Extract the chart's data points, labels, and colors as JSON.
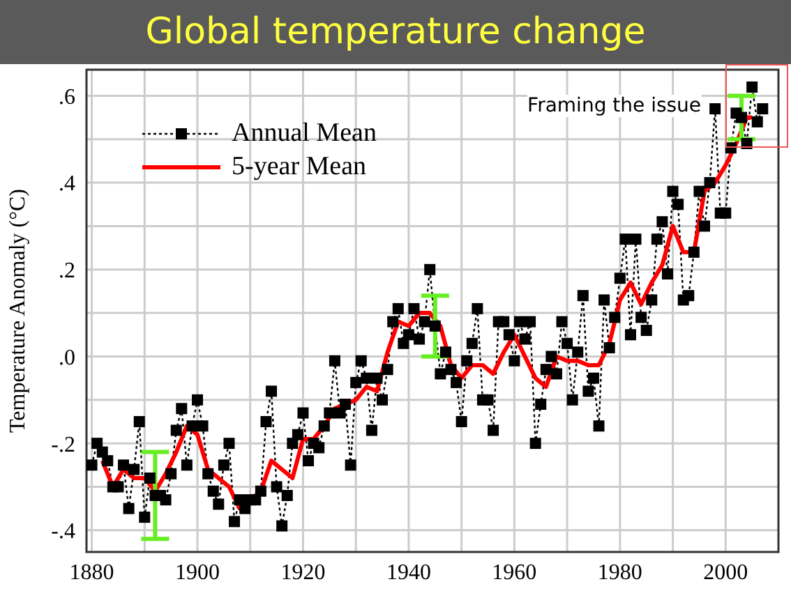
{
  "chart_data": {
    "type": "line",
    "title": "Global temperature change",
    "ylabel": "Temperature Anomaly (°C)",
    "annotations": [
      "Framing the issue"
    ],
    "xlim": [
      1879,
      2010
    ],
    "xticks": [
      1880,
      {
        "value": 1890,
        "label": null
      },
      1900,
      {
        "value": 1910,
        "label": null
      },
      1920,
      {
        "value": 1930,
        "label": null
      },
      1940,
      {
        "value": 1950,
        "label": null
      },
      1960,
      {
        "value": 1970,
        "label": null
      },
      1980,
      {
        "value": 1990,
        "label": null
      },
      2000
    ],
    "ylim": [
      -0.45,
      0.66
    ],
    "yticks": [
      {
        "value": -0.4,
        "label": "-.4"
      },
      {
        "value": -0.3,
        "label": null
      },
      {
        "value": -0.2,
        "label": "-.2"
      },
      {
        "value": -0.1,
        "label": null
      },
      {
        "value": 0,
        "label": ".0"
      },
      {
        "value": 0.1,
        "label": null
      },
      {
        "value": 0.2,
        "label": ".2"
      },
      {
        "value": 0.3,
        "label": null
      },
      {
        "value": 0.4,
        "label": ".4"
      },
      {
        "value": 0.5,
        "label": null
      },
      {
        "value": 0.6,
        "label": ".6"
      }
    ],
    "grid": true,
    "legend": "top left",
    "series": [
      {
        "name": "Annual Mean",
        "color": "#000000",
        "marker": "square",
        "line_style": "dotted",
        "x": [
          1880,
          1881,
          1882,
          1883,
          1884,
          1885,
          1886,
          1887,
          1888,
          1889,
          1890,
          1891,
          1892,
          1893,
          1894,
          1895,
          1896,
          1897,
          1898,
          1899,
          1900,
          1901,
          1902,
          1903,
          1904,
          1905,
          1906,
          1907,
          1908,
          1909,
          1910,
          1911,
          1912,
          1913,
          1914,
          1915,
          1916,
          1917,
          1918,
          1919,
          1920,
          1921,
          1922,
          1923,
          1924,
          1925,
          1926,
          1927,
          1928,
          1929,
          1930,
          1931,
          1932,
          1933,
          1934,
          1935,
          1936,
          1937,
          1938,
          1939,
          1940,
          1941,
          1942,
          1943,
          1944,
          1945,
          1946,
          1947,
          1948,
          1949,
          1950,
          1951,
          1952,
          1953,
          1954,
          1955,
          1956,
          1957,
          1958,
          1959,
          1960,
          1961,
          1962,
          1963,
          1964,
          1965,
          1966,
          1967,
          1968,
          1969,
          1970,
          1971,
          1972,
          1973,
          1974,
          1975,
          1976,
          1977,
          1978,
          1979,
          1980,
          1981,
          1982,
          1983,
          1984,
          1985,
          1986,
          1987,
          1988,
          1989,
          1990,
          1991,
          1992,
          1993,
          1994,
          1995,
          1996,
          1997,
          1998,
          1999,
          2000,
          2001,
          2002,
          2003,
          2004,
          2005,
          2006,
          2007
        ],
        "values": [
          -0.25,
          -0.2,
          -0.22,
          -0.24,
          -0.3,
          -0.3,
          -0.25,
          -0.35,
          -0.26,
          -0.15,
          -0.37,
          -0.28,
          -0.32,
          -0.32,
          -0.33,
          -0.27,
          -0.17,
          -0.12,
          -0.25,
          -0.16,
          -0.1,
          -0.16,
          -0.27,
          -0.31,
          -0.34,
          -0.25,
          -0.2,
          -0.38,
          -0.33,
          -0.35,
          -0.33,
          -0.33,
          -0.31,
          -0.15,
          -0.08,
          -0.3,
          -0.39,
          -0.32,
          -0.2,
          -0.18,
          -0.13,
          -0.24,
          -0.2,
          -0.21,
          -0.16,
          -0.13,
          -0.01,
          -0.13,
          -0.11,
          -0.25,
          -0.06,
          -0.01,
          -0.05,
          -0.17,
          -0.05,
          -0.1,
          -0.03,
          0.08,
          0.11,
          0.03,
          0.05,
          0.11,
          0.04,
          0.08,
          0.2,
          0.07,
          -0.04,
          0.01,
          -0.03,
          -0.06,
          -0.15,
          -0.01,
          0.03,
          0.11,
          -0.1,
          -0.1,
          -0.17,
          0.08,
          0.08,
          0.05,
          -0.01,
          0.08,
          0.04,
          0.08,
          -0.2,
          -0.11,
          -0.03,
          0.0,
          -0.04,
          0.08,
          0.03,
          -0.1,
          0.01,
          0.14,
          -0.08,
          -0.05,
          -0.16,
          0.13,
          0.02,
          0.09,
          0.18,
          0.27,
          0.05,
          0.27,
          0.09,
          0.06,
          0.13,
          0.27,
          0.31,
          0.19,
          0.38,
          0.35,
          0.13,
          0.14,
          0.24,
          0.38,
          0.3,
          0.4,
          0.57,
          0.33,
          0.33,
          0.48,
          0.56,
          0.55,
          0.49,
          0.62,
          0.54,
          0.57
        ],
        "errors": [
          null,
          null,
          null,
          null,
          null,
          null,
          null,
          null,
          null,
          null,
          null,
          null,
          0.1,
          null,
          null,
          null,
          null,
          null,
          null,
          null,
          null,
          null,
          null,
          null,
          null,
          null,
          null,
          null,
          null,
          null,
          null,
          null,
          null,
          null,
          null,
          null,
          null,
          null,
          null,
          null,
          null,
          null,
          null,
          null,
          null,
          null,
          null,
          null,
          null,
          null,
          null,
          null,
          null,
          null,
          null,
          null,
          null,
          null,
          null,
          null,
          null,
          null,
          null,
          null,
          null,
          0.07,
          null,
          null,
          null,
          null,
          null,
          null,
          null,
          null,
          null,
          null,
          null,
          null,
          null,
          null,
          null,
          null,
          null,
          null,
          null,
          null,
          null,
          null,
          null,
          null,
          null,
          null,
          null,
          null,
          null,
          null,
          null,
          null,
          null,
          null,
          null,
          null,
          null,
          null,
          null,
          null,
          null,
          null,
          null,
          null,
          null,
          null,
          null,
          null,
          null,
          null,
          null,
          null,
          null,
          null,
          null,
          null,
          null,
          0.05,
          null,
          null,
          null,
          null
        ]
      },
      {
        "name": "5-year Mean",
        "color": "#ff0000",
        "marker": "none",
        "line_style": "solid",
        "x": [
          1882,
          1884,
          1886,
          1888,
          1890,
          1892,
          1894,
          1896,
          1898,
          1900,
          1902,
          1904,
          1906,
          1908,
          1910,
          1912,
          1914,
          1916,
          1918,
          1920,
          1922,
          1924,
          1926,
          1928,
          1930,
          1932,
          1934,
          1936,
          1938,
          1940,
          1942,
          1944,
          1946,
          1948,
          1950,
          1952,
          1954,
          1956,
          1958,
          1960,
          1962,
          1964,
          1966,
          1968,
          1970,
          1972,
          1974,
          1976,
          1978,
          1980,
          1982,
          1984,
          1986,
          1988,
          1990,
          1992,
          1994,
          1996,
          1998,
          2000,
          2002,
          2004,
          2005
        ],
        "values": [
          -0.24,
          -0.3,
          -0.26,
          -0.28,
          -0.28,
          -0.31,
          -0.27,
          -0.22,
          -0.16,
          -0.18,
          -0.26,
          -0.28,
          -0.3,
          -0.35,
          -0.33,
          -0.31,
          -0.24,
          -0.26,
          -0.28,
          -0.19,
          -0.19,
          -0.16,
          -0.12,
          -0.11,
          -0.1,
          -0.07,
          -0.08,
          0.01,
          0.08,
          0.07,
          0.1,
          0.1,
          0.07,
          -0.02,
          -0.05,
          -0.02,
          -0.02,
          -0.04,
          0.01,
          0.05,
          0.0,
          -0.05,
          -0.07,
          0.0,
          -0.01,
          -0.01,
          -0.02,
          -0.02,
          0.03,
          0.13,
          0.17,
          0.12,
          0.17,
          0.21,
          0.3,
          0.24,
          0.24,
          0.38,
          0.4,
          0.44,
          0.49,
          0.55,
          0.55
        ]
      }
    ]
  }
}
